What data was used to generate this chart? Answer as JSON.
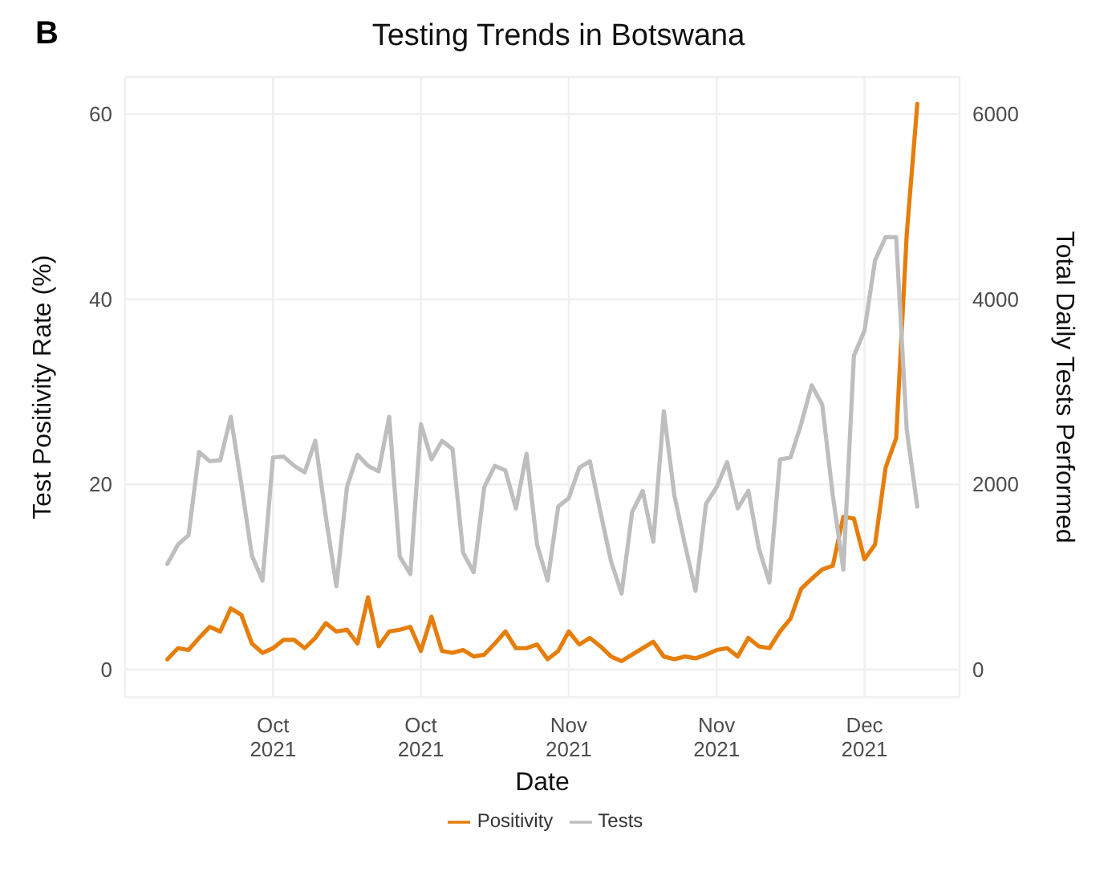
{
  "chart_data": {
    "type": "line",
    "title": "Testing Trends in Botswana",
    "xlabel": "Date",
    "ylabel": "Test Positivity Rate (%)",
    "y2label": "Total Daily Tests Performed",
    "annotations": [
      "B"
    ],
    "x": [
      "2021-10-01",
      "2021-10-02",
      "2021-10-03",
      "2021-10-04",
      "2021-10-05",
      "2021-10-06",
      "2021-10-07",
      "2021-10-08",
      "2021-10-09",
      "2021-10-10",
      "2021-10-11",
      "2021-10-12",
      "2021-10-13",
      "2021-10-14",
      "2021-10-15",
      "2021-10-16",
      "2021-10-17",
      "2021-10-18",
      "2021-10-19",
      "2021-10-20",
      "2021-10-21",
      "2021-10-22",
      "2021-10-23",
      "2021-10-24",
      "2021-10-25",
      "2021-10-26",
      "2021-10-27",
      "2021-10-28",
      "2021-10-29",
      "2021-10-30",
      "2021-10-31",
      "2021-11-01",
      "2021-11-02",
      "2021-11-03",
      "2021-11-04",
      "2021-11-05",
      "2021-11-06",
      "2021-11-07",
      "2021-11-08",
      "2021-11-09",
      "2021-11-10",
      "2021-11-11",
      "2021-11-12",
      "2021-11-13",
      "2021-11-14",
      "2021-11-15",
      "2021-11-16",
      "2021-11-17",
      "2021-11-18",
      "2021-11-19",
      "2021-11-20",
      "2021-11-21",
      "2021-11-22",
      "2021-11-23",
      "2021-11-24",
      "2021-11-25",
      "2021-11-26",
      "2021-11-27",
      "2021-11-28",
      "2021-11-29",
      "2021-11-30",
      "2021-12-01",
      "2021-12-02",
      "2021-12-03",
      "2021-12-04",
      "2021-12-05",
      "2021-12-06",
      "2021-12-07",
      "2021-12-08",
      "2021-12-09",
      "2021-12-10",
      "2021-12-11"
    ],
    "series": [
      {
        "name": "Positivity",
        "color": "#e67e0b",
        "values": [
          1.1,
          2.3,
          2.1,
          3.4,
          4.6,
          4.1,
          6.6,
          5.9,
          2.8,
          1.8,
          2.3,
          3.2,
          3.2,
          2.3,
          3.4,
          5.0,
          4.1,
          4.3,
          2.8,
          7.8,
          2.5,
          4.1,
          4.3,
          4.6,
          2.0,
          5.7,
          2.0,
          1.8,
          2.1,
          1.4,
          1.6,
          2.8,
          4.1,
          2.3,
          2.3,
          2.7,
          1.1,
          2.0,
          4.1,
          2.7,
          3.4,
          2.5,
          1.4,
          0.9,
          1.6,
          2.3,
          3.0,
          1.4,
          1.1,
          1.4,
          1.2,
          1.6,
          2.1,
          2.3,
          1.4,
          3.4,
          2.5,
          2.3,
          4.1,
          5.5,
          8.7,
          9.8,
          10.8,
          11.2,
          16.5,
          16.3,
          11.9,
          13.5,
          21.8,
          25.0,
          47,
          61.1
        ]
      },
      {
        "name": "Tests",
        "color": "#bebebe",
        "axis": "y2",
        "values": [
          1140,
          1350,
          1450,
          2350,
          2250,
          2260,
          2730,
          2000,
          1230,
          960,
          2290,
          2300,
          2200,
          2130,
          2470,
          1650,
          900,
          1970,
          2320,
          2200,
          2140,
          2730,
          1220,
          1030,
          2650,
          2270,
          2470,
          2380,
          1260,
          1050,
          1970,
          2200,
          2150,
          1740,
          2330,
          1350,
          960,
          1760,
          1850,
          2180,
          2250,
          1700,
          1170,
          820,
          1700,
          1930,
          1380,
          2790,
          1880,
          1350,
          850,
          1790,
          1970,
          2240,
          1740,
          1930,
          1310,
          940,
          2270,
          2290,
          2650,
          3070,
          2860,
          1880,
          1080,
          3390,
          3660,
          4420,
          4670,
          4670,
          2590,
          1760
        ]
      }
    ],
    "xlim": [
      "2021-09-27",
      "2021-12-15"
    ],
    "xticks": [
      {
        "value": "2021-10-11",
        "label": "Oct\n2021"
      },
      {
        "value": "2021-10-25",
        "label": "Oct\n2021"
      },
      {
        "value": "2021-11-08",
        "label": "Nov\n2021"
      },
      {
        "value": "2021-11-22",
        "label": "Nov\n2021"
      },
      {
        "value": "2021-12-06",
        "label": "Dec\n2021"
      }
    ],
    "ylim": [
      -3,
      64
    ],
    "yticks": [
      0,
      20,
      40,
      60
    ],
    "y2lim": [
      -300,
      6400
    ],
    "y2ticks": [
      0,
      2000,
      4000,
      6000
    ],
    "grid": true,
    "legend": "bottom",
    "marker": "none",
    "line_style": "solid"
  }
}
